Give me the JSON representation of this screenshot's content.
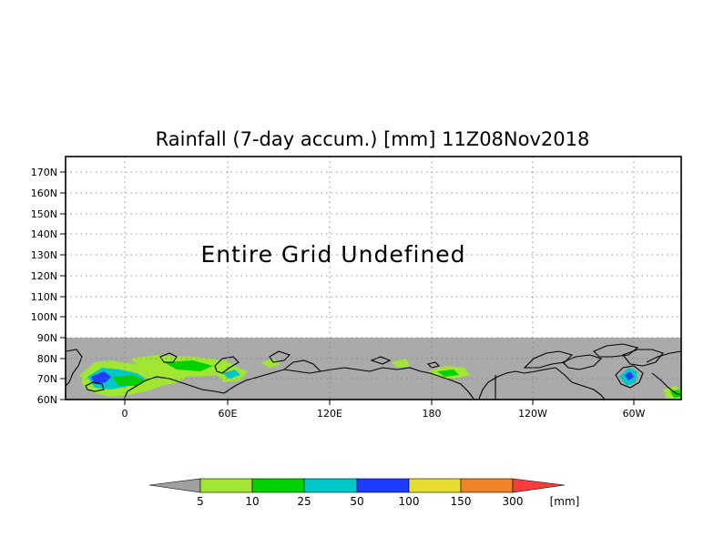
{
  "title": "Rainfall (7-day accum.) [mm] 11Z08Nov2018",
  "overlay_message": "Entire Grid Undefined",
  "map": {
    "lat_labels": [
      "170N",
      "160N",
      "150N",
      "140N",
      "130N",
      "120N",
      "110N",
      "100N",
      "90N",
      "80N",
      "70N",
      "60N"
    ],
    "lon_labels": [
      "0",
      "60E",
      "120E",
      "180",
      "120W",
      "60W"
    ],
    "undefined_fill": "#aaaaaa",
    "coast_color": "#000000",
    "grid_style": "dotted"
  },
  "colorbar": {
    "unit": "[mm]",
    "thresholds": [
      "5",
      "10",
      "25",
      "50",
      "100",
      "150",
      "300"
    ],
    "colors": [
      "#a0a0a0",
      "#a0e632",
      "#00d200",
      "#00c8c8",
      "#1e3cff",
      "#e6dc32",
      "#f08228",
      "#fa3c3c"
    ]
  }
}
